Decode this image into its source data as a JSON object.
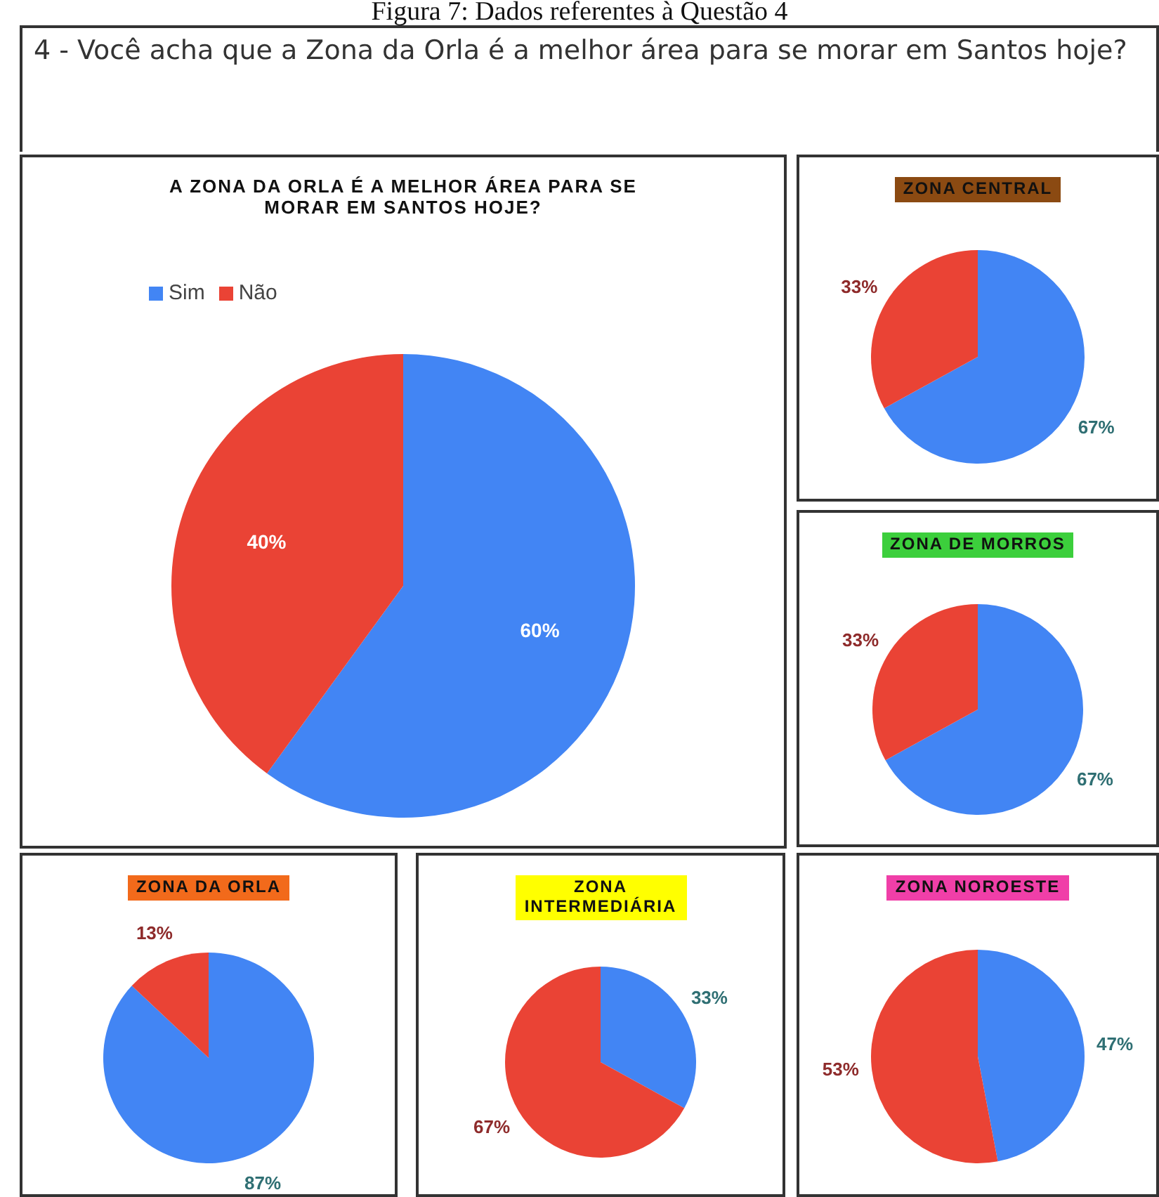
{
  "chart_data": [
    {
      "type": "other",
      "title": "Figura 7: Dados referentes à Questão 4",
      "subtitle": "4 - Você acha que a Zona da Orla é a melhor área para se morar em Santos hoje?"
    },
    {
      "type": "pie",
      "title": "A ZONA DA ORLA É A MELHOR ÁREA PARA SE MORAR EM SANTOS HOJE?",
      "categories": [
        "Sim",
        "Não"
      ],
      "values": [
        60,
        40
      ],
      "colors": [
        "#4285f4",
        "#ea4335"
      ],
      "value_labels": [
        "60%",
        "40%"
      ],
      "legend": "top left"
    },
    {
      "type": "pie",
      "title": "ZONA CENTRAL",
      "categories": [
        null,
        null
      ],
      "values": [
        67,
        33
      ],
      "colors": [
        "#4285f4",
        "#ea4335"
      ],
      "value_labels": [
        "67%",
        "33%"
      ]
    },
    {
      "type": "pie",
      "title": "ZONA DE MORROS",
      "categories": [
        null,
        null
      ],
      "values": [
        67,
        33
      ],
      "colors": [
        "#4285f4",
        "#ea4335"
      ],
      "value_labels": [
        "67%",
        "33%"
      ]
    },
    {
      "type": "pie",
      "title": "ZONA DA ORLA",
      "categories": [
        null,
        null
      ],
      "values": [
        87,
        13
      ],
      "colors": [
        "#4285f4",
        "#ea4335"
      ],
      "value_labels": [
        "87%",
        "13%"
      ]
    },
    {
      "type": "pie",
      "title": "ZONA INTERMEDIÁRIA",
      "categories": [
        null,
        null
      ],
      "values": [
        33,
        67
      ],
      "colors": [
        "#4285f4",
        "#ea4335"
      ],
      "value_labels": [
        "33%",
        "67%"
      ]
    },
    {
      "type": "pie",
      "title": "ZONA NOROESTE",
      "categories": [
        null,
        null
      ],
      "values": [
        47,
        53
      ],
      "colors": [
        "#4285f4",
        "#ea4335"
      ],
      "value_labels": [
        "47%",
        "53%"
      ]
    }
  ]
}
